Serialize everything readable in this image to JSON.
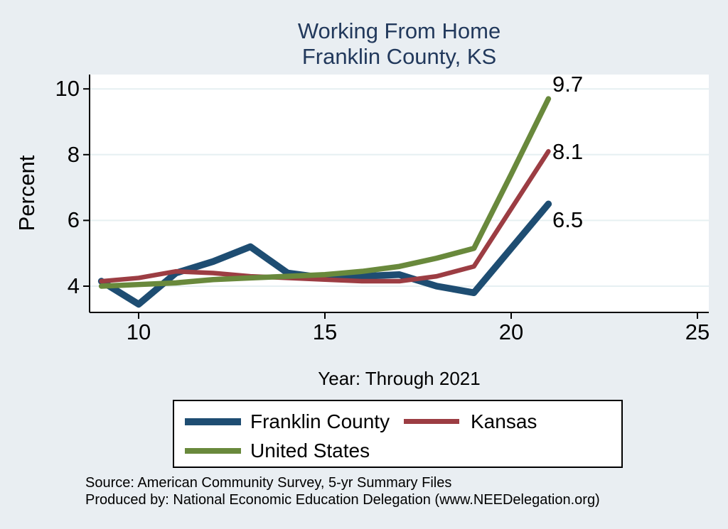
{
  "title": {
    "line1": "Working From Home",
    "line2": "Franklin County, KS"
  },
  "axes": {
    "y_title": "Percent",
    "x_title": "Year: Through 2021",
    "y_tick_labels": [
      "10",
      "8",
      "6",
      "4"
    ],
    "x_tick_labels": [
      "10",
      "15",
      "20",
      "25"
    ]
  },
  "end_labels": {
    "united_states": "9.7",
    "kansas": "8.1",
    "franklin_county": "6.5"
  },
  "legend": {
    "items": [
      {
        "label": "Franklin County",
        "color": "#1e4d72"
      },
      {
        "label": "Kansas",
        "color": "#9c3d43"
      },
      {
        "label": "United States",
        "color": "#69893c"
      }
    ]
  },
  "footer": {
    "line1": "Source: American Community Survey, 5-yr Summary Files",
    "line2": "Produced by: National Economic Education Delegation (www.NEEDelegation.org)"
  },
  "colors": {
    "background": "#e9eef2",
    "plot_background": "#ffffff",
    "gridline": "#e6f0f2",
    "axis": "#000000",
    "title_text": "#22395c",
    "franklin_county_line": "#1e4d72",
    "kansas_line": "#9c3d43",
    "united_states_line": "#69893c"
  },
  "chart_data": {
    "type": "line",
    "title": "Working From Home — Franklin County, KS",
    "xlabel": "Year: Through 2021",
    "ylabel": "Percent",
    "x": [
      9,
      10,
      11,
      12,
      13,
      14,
      15,
      16,
      17,
      18,
      19,
      20,
      21
    ],
    "x_note": "years are 2009-2021 shown as 2-digit labels",
    "series": [
      {
        "name": "Franklin County",
        "color": "#1e4d72",
        "values": [
          4.15,
          3.45,
          4.4,
          4.75,
          5.2,
          4.4,
          4.25,
          4.3,
          4.35,
          4.0,
          3.8,
          5.15,
          6.5
        ],
        "end_label": "6.5"
      },
      {
        "name": "Kansas",
        "color": "#9c3d43",
        "values": [
          4.15,
          4.25,
          4.45,
          4.4,
          4.3,
          4.25,
          4.2,
          4.15,
          4.15,
          4.3,
          4.6,
          6.35,
          8.1
        ],
        "end_label": "8.1"
      },
      {
        "name": "United States",
        "color": "#69893c",
        "values": [
          4.0,
          4.05,
          4.1,
          4.2,
          4.25,
          4.3,
          4.35,
          4.45,
          4.6,
          4.85,
          5.15,
          7.4,
          9.7
        ],
        "end_label": "9.7"
      }
    ],
    "xlim": [
      8.7,
      25.3
    ],
    "ylim": [
      3.2,
      10.45
    ],
    "x_ticks": [
      10,
      15,
      20,
      25
    ],
    "y_ticks": [
      4,
      6,
      8,
      10
    ],
    "grid": "horizontal-only",
    "legend_position": "bottom"
  }
}
